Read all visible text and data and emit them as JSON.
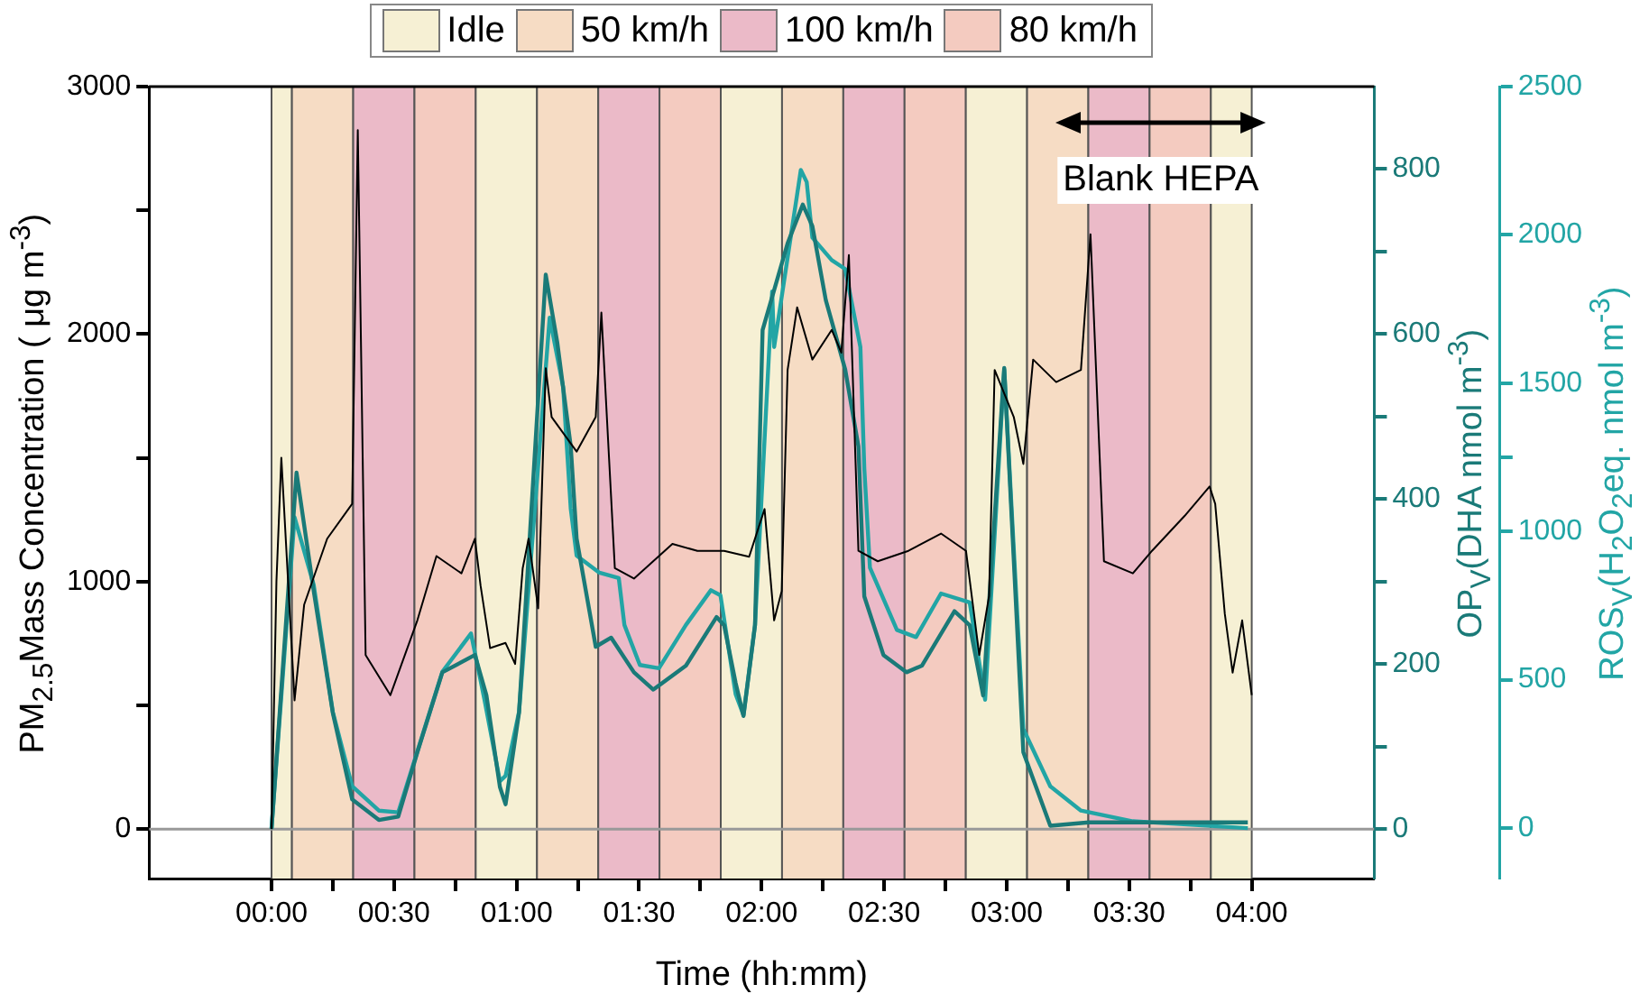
{
  "chart_data": {
    "type": "line",
    "xlabel": "Time (hh:mm)",
    "ylabel": "PM$_{2.5}$Mass Concentration ( μg m$^{-3}$)",
    "y2label": "OP$_{V}$(DHA nmol m$^{-3}$)",
    "y3label": "ROS$_{V}$(H$_{2}$O$_{2}$eq. nmol m$^{-3}$)",
    "xlim": [
      -0.5,
      4.5
    ],
    "xticks": [
      {
        "value": 0,
        "label": "00:00"
      },
      {
        "value": 0.25,
        "label": null
      },
      {
        "value": 0.5,
        "label": "00:30"
      },
      {
        "value": 0.75,
        "label": null
      },
      {
        "value": 1,
        "label": "01:00"
      },
      {
        "value": 1.25,
        "label": null
      },
      {
        "value": 1.5,
        "label": "01:30"
      },
      {
        "value": 1.75,
        "label": null
      },
      {
        "value": 2,
        "label": "02:00"
      },
      {
        "value": 2.25,
        "label": null
      },
      {
        "value": 2.5,
        "label": "02:30"
      },
      {
        "value": 2.75,
        "label": null
      },
      {
        "value": 3,
        "label": "03:00"
      },
      {
        "value": 3.25,
        "label": null
      },
      {
        "value": 3.5,
        "label": "03:30"
      },
      {
        "value": 3.75,
        "label": null
      },
      {
        "value": 4,
        "label": "04:00"
      }
    ],
    "ylim": [
      -200,
      3000
    ],
    "yticks": [
      0,
      {
        "value": 500,
        "label": null
      },
      1000,
      {
        "value": 1500,
        "label": null
      },
      2000,
      {
        "value": 2500,
        "label": null
      },
      3000
    ],
    "y2lim": [
      -60,
      900
    ],
    "y2ticks": [
      0,
      {
        "value": 100,
        "label": null
      },
      200,
      {
        "value": 300,
        "label": null
      },
      400,
      {
        "value": 500,
        "label": null
      },
      600,
      {
        "value": 700,
        "label": null
      },
      800
    ],
    "y3lim": [
      -170,
      2500
    ],
    "y3ticks": [
      0,
      500,
      1000,
      {
        "value": 1250,
        "label": null
      },
      1500,
      2000,
      2500
    ],
    "legend": "top",
    "series": [
      {
        "color": "#000000",
        "x": [
          0,
          0.02,
          0.04,
          0.094,
          0.133,
          0.227,
          0.329,
          0.352,
          0.384,
          0.485,
          0.595,
          0.673,
          0.775,
          0.83,
          0.853,
          0.892,
          0.955,
          0.994,
          1.025,
          1.049,
          1.088,
          1.119,
          1.143,
          1.245,
          1.323,
          1.346,
          1.401,
          1.479,
          1.636,
          1.738,
          1.847,
          1.949,
          2.012,
          2.051,
          2.082,
          2.106,
          2.145,
          2.207,
          2.286,
          2.325,
          2.356,
          2.395,
          2.474,
          2.599,
          2.732,
          2.834,
          2.888,
          2.928,
          2.951,
          3.029,
          3.068,
          3.108,
          3.202,
          3.303,
          3.342,
          3.397,
          3.515,
          3.593,
          3.726,
          3.828,
          3.851,
          3.89,
          3.922,
          3.961,
          4.0
        ],
        "values": [
          0,
          1000,
          1500,
          520,
          906,
          1173,
          1314,
          2824,
          703,
          541,
          843,
          1103,
          1033,
          1173,
          984,
          731,
          752,
          667,
          1054,
          1173,
          892,
          1862,
          1665,
          1525,
          1665,
          2087,
          1054,
          1012,
          1152,
          1124,
          1124,
          1100,
          1293,
          843,
          962,
          1855,
          2108,
          1897,
          2017,
          1925,
          2319,
          1124,
          1082,
          1124,
          1194,
          1124,
          703,
          941,
          1855,
          1665,
          1475,
          1897,
          1806,
          1855,
          2403,
          1082,
          1033,
          1124,
          1265,
          1384,
          1314,
          871,
          632,
          843,
          541
        ]
      },
      {
        "color": "#1a7a78",
        "axis": "y2",
        "x": [
          0,
          0.102,
          0.172,
          0.25,
          0.329,
          0.438,
          0.517,
          0.595,
          0.697,
          0.83,
          0.877,
          0.932,
          0.955,
          1.01,
          1.119,
          1.166,
          1.221,
          1.245,
          1.323,
          1.386,
          1.479,
          1.558,
          1.691,
          1.816,
          1.847,
          1.894,
          1.926,
          1.973,
          2.004,
          2.106,
          2.168,
          2.207,
          2.262,
          2.341,
          2.395,
          2.419,
          2.497,
          2.591,
          2.654,
          2.787,
          2.849,
          2.904,
          2.99,
          3.068,
          3.178,
          3.335,
          3.984
        ],
        "values": [
          0,
          432,
          289,
          141,
          36,
          11,
          15,
          93,
          190,
          211,
          162,
          51,
          30,
          141,
          672,
          590,
          464,
          352,
          221,
          232,
          190,
          169,
          198,
          257,
          247,
          177,
          137,
          247,
          605,
          710,
          757,
          731,
          641,
          557,
          464,
          282,
          211,
          190,
          198,
          264,
          247,
          162,
          559,
          93,
          4,
          8,
          8
        ]
      },
      {
        "color": "#22a5a5",
        "axis": "y3",
        "x": [
          0,
          0.094,
          0.172,
          0.25,
          0.329,
          0.438,
          0.517,
          0.595,
          0.697,
          0.814,
          0.869,
          0.932,
          0.955,
          1.01,
          1.135,
          1.19,
          1.221,
          1.245,
          1.338,
          1.417,
          1.44,
          1.503,
          1.581,
          1.691,
          1.793,
          1.832,
          1.894,
          1.926,
          1.973,
          2.043,
          2.051,
          2.16,
          2.184,
          2.207,
          2.286,
          2.341,
          2.403,
          2.419,
          2.442,
          2.552,
          2.63,
          2.732,
          2.849,
          2.912,
          2.99,
          3.068,
          3.178,
          3.303,
          3.515,
          3.984
        ],
        "values": [
          0,
          1048,
          820,
          392,
          141,
          59,
          53,
          258,
          527,
          656,
          433,
          158,
          176,
          392,
          1721,
          1487,
          1077,
          919,
          861,
          843,
          685,
          550,
          539,
          685,
          802,
          785,
          451,
          381,
          685,
          1809,
          1622,
          2219,
          2178,
          1991,
          1915,
          1885,
          1622,
          1212,
          878,
          668,
          644,
          791,
          761,
          433,
          1546,
          334,
          141,
          59,
          23,
          0
        ]
      }
    ],
    "bands": [
      {
        "axis": "x",
        "from": 0,
        "to": 0.0833,
        "label": "Idle",
        "color": "#f6f0d4"
      },
      {
        "axis": "x",
        "from": 0.0833,
        "to": 0.3333,
        "label": "50 km/h",
        "color": "#f6dcc4"
      },
      {
        "axis": "x",
        "from": 0.3333,
        "to": 0.5833,
        "label": "100 km/h",
        "color": "#ebbac8"
      },
      {
        "axis": "x",
        "from": 0.5833,
        "to": 0.8333,
        "label": "80 km/h",
        "color": "#f4cbc0"
      },
      {
        "axis": "x",
        "from": 0.8333,
        "to": 1.0833,
        "color": "#f6f0d4"
      },
      {
        "axis": "x",
        "from": 1.0833,
        "to": 1.3333,
        "color": "#f6dcc4"
      },
      {
        "axis": "x",
        "from": 1.3333,
        "to": 1.5833,
        "color": "#ebbac8"
      },
      {
        "axis": "x",
        "from": 1.5833,
        "to": 1.8333,
        "color": "#f4cbc0"
      },
      {
        "axis": "x",
        "from": 1.8333,
        "to": 2.0833,
        "color": "#f6f0d4"
      },
      {
        "axis": "x",
        "from": 2.0833,
        "to": 2.3333,
        "color": "#f6dcc4"
      },
      {
        "axis": "x",
        "from": 2.3333,
        "to": 2.5833,
        "color": "#ebbac8"
      },
      {
        "axis": "x",
        "from": 2.5833,
        "to": 2.8333,
        "color": "#f4cbc0"
      },
      {
        "axis": "x",
        "from": 2.8333,
        "to": 3.0833,
        "color": "#f6f0d4"
      },
      {
        "axis": "x",
        "from": 3.0833,
        "to": 3.3333,
        "color": "#f6dcc4"
      },
      {
        "axis": "x",
        "from": 3.3333,
        "to": 3.5833,
        "color": "#ebbac8"
      },
      {
        "axis": "x",
        "from": 3.5833,
        "to": 3.8333,
        "color": "#f4cbc0"
      },
      {
        "axis": "x",
        "from": 3.8333,
        "to": 4.0,
        "color": "#f6f0d4"
      }
    ],
    "ref_lines": [
      {
        "axis": "y",
        "value": 0,
        "color": "#999999"
      }
    ],
    "annotations": [
      "Blank HEPA"
    ]
  }
}
